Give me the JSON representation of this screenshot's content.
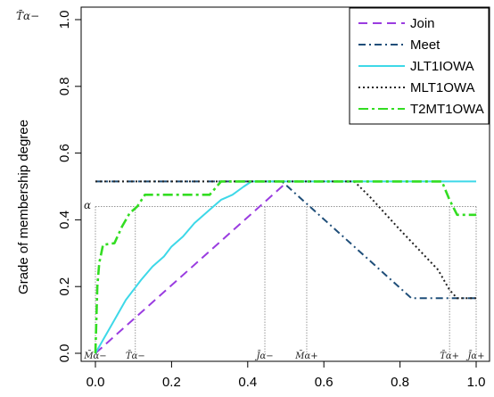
{
  "chart_data": {
    "type": "line",
    "title": "",
    "xlabel": "",
    "ylabel": "Grade of membership degree",
    "xlim": [
      0,
      1
    ],
    "ylim": [
      0,
      1
    ],
    "x_ticks": [
      "0.0",
      "0.2",
      "0.4",
      "0.6",
      "0.8",
      "1.0"
    ],
    "y_ticks": [
      "0.0",
      "0.2",
      "0.4",
      "0.6",
      "0.8",
      "1.0"
    ],
    "legend_position": "top-right",
    "top_left_label": "T̄α−",
    "alpha_label": "α",
    "alpha_level": 0.44,
    "series": [
      {
        "name": "Join",
        "color": "#9a3ce0",
        "dash": "dashed",
        "points": [
          [
            0.0,
            0.0
          ],
          [
            0.5,
            0.51
          ]
        ]
      },
      {
        "name": "Meet",
        "color": "#1f4e79",
        "dash": "dashdot",
        "points": [
          [
            0.0,
            0.515
          ],
          [
            0.49,
            0.515
          ],
          [
            0.83,
            0.165
          ],
          [
            1.0,
            0.165
          ]
        ]
      },
      {
        "name": "JLT1IOWA",
        "color": "#3dd8e8",
        "dash": "solid",
        "points": [
          [
            0.0,
            0.0
          ],
          [
            0.02,
            0.04
          ],
          [
            0.04,
            0.08
          ],
          [
            0.06,
            0.12
          ],
          [
            0.08,
            0.16
          ],
          [
            0.1,
            0.19
          ],
          [
            0.12,
            0.22
          ],
          [
            0.15,
            0.26
          ],
          [
            0.18,
            0.29
          ],
          [
            0.2,
            0.32
          ],
          [
            0.23,
            0.35
          ],
          [
            0.26,
            0.39
          ],
          [
            0.3,
            0.43
          ],
          [
            0.33,
            0.46
          ],
          [
            0.36,
            0.475
          ],
          [
            0.39,
            0.5
          ],
          [
            0.41,
            0.515
          ],
          [
            1.0,
            0.515
          ]
        ]
      },
      {
        "name": "MLT1OWA",
        "color": "#222222",
        "dash": "dotted",
        "points": [
          [
            0.0,
            0.515
          ],
          [
            0.68,
            0.515
          ],
          [
            0.72,
            0.47
          ],
          [
            0.76,
            0.42
          ],
          [
            0.8,
            0.37
          ],
          [
            0.85,
            0.31
          ],
          [
            0.9,
            0.25
          ],
          [
            0.93,
            0.19
          ],
          [
            0.95,
            0.165
          ],
          [
            1.0,
            0.165
          ]
        ]
      },
      {
        "name": "T2MT1OWA",
        "color": "#33dd22",
        "dash": "longdash-dot",
        "points": [
          [
            0.0,
            0.0
          ],
          [
            0.005,
            0.2
          ],
          [
            0.01,
            0.27
          ],
          [
            0.02,
            0.325
          ],
          [
            0.05,
            0.33
          ],
          [
            0.07,
            0.38
          ],
          [
            0.09,
            0.42
          ],
          [
            0.11,
            0.44
          ],
          [
            0.13,
            0.475
          ],
          [
            0.3,
            0.475
          ],
          [
            0.33,
            0.515
          ],
          [
            0.91,
            0.515
          ],
          [
            0.93,
            0.46
          ],
          [
            0.95,
            0.415
          ],
          [
            1.0,
            0.415
          ]
        ]
      }
    ],
    "vertical_markers": [
      {
        "x": 0.0,
        "y_top": 0.44,
        "label": "M̄α−"
      },
      {
        "x": 0.105,
        "y_top": 0.44,
        "label": "T̄α−"
      },
      {
        "x": 0.445,
        "y_top": 0.44,
        "label": "J̄α−"
      },
      {
        "x": 0.555,
        "y_top": 0.44,
        "label": "M̄α+"
      },
      {
        "x": 0.93,
        "y_top": 0.44,
        "label": "T̄α+"
      },
      {
        "x": 1.0,
        "y_top": 0.44,
        "label": "J̄α+"
      }
    ]
  }
}
